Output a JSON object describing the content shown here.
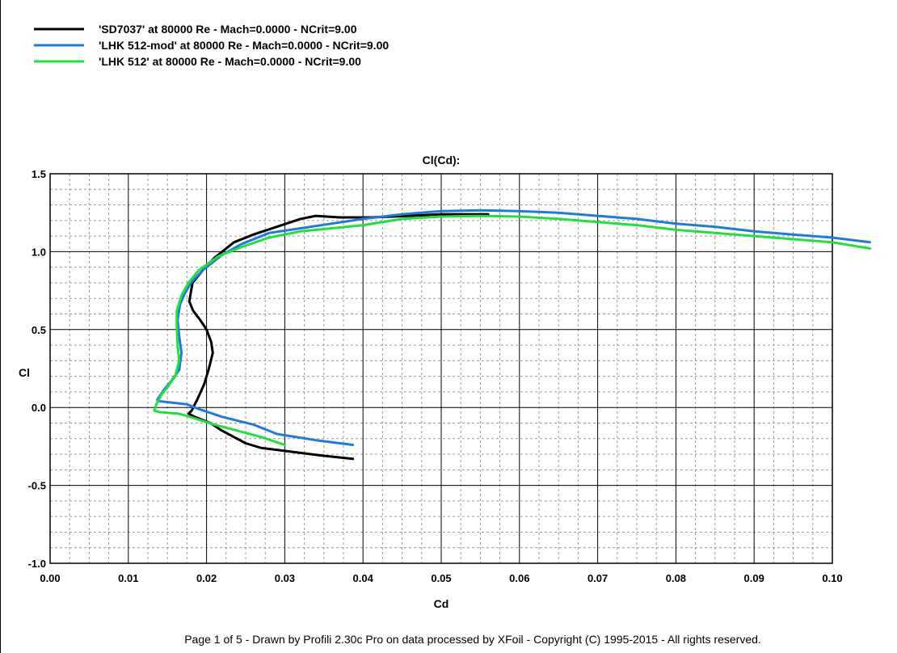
{
  "chart_data": {
    "type": "line",
    "title": "Cl(Cd):",
    "xlabel": "Cd",
    "ylabel": "Cl",
    "xlim": [
      0.0,
      0.1
    ],
    "ylim": [
      -1.0,
      1.5
    ],
    "x_ticks": [
      "0.00",
      "0.01",
      "0.02",
      "0.03",
      "0.04",
      "0.05",
      "0.06",
      "0.07",
      "0.08",
      "0.09",
      "0.10"
    ],
    "y_ticks": [
      "1.5",
      "1.0",
      "0.5",
      "0.0",
      "-0.5",
      "-1.0"
    ],
    "x_tick_values": [
      0.0,
      0.01,
      0.02,
      0.03,
      0.04,
      0.05,
      0.06,
      0.07,
      0.08,
      0.09,
      0.1
    ],
    "y_tick_values": [
      1.5,
      1.0,
      0.5,
      0.0,
      -0.5,
      -1.0
    ],
    "grid": true,
    "legend_position": "top-left",
    "series": [
      {
        "name": "'SD7037' at 80000 Re - Mach=0.0000 - NCrit=9.00",
        "color": "#000000",
        "points": [
          [
            0.0387,
            -0.33
          ],
          [
            0.035,
            -0.31
          ],
          [
            0.031,
            -0.285
          ],
          [
            0.027,
            -0.26
          ],
          [
            0.025,
            -0.23
          ],
          [
            0.022,
            -0.15
          ],
          [
            0.0205,
            -0.1
          ],
          [
            0.0185,
            -0.06
          ],
          [
            0.0177,
            -0.04
          ],
          [
            0.0181,
            -0.02
          ],
          [
            0.0183,
            0.0
          ],
          [
            0.0188,
            0.05
          ],
          [
            0.0197,
            0.15
          ],
          [
            0.0203,
            0.25
          ],
          [
            0.0208,
            0.35
          ],
          [
            0.0206,
            0.42
          ],
          [
            0.02,
            0.5
          ],
          [
            0.0192,
            0.56
          ],
          [
            0.0183,
            0.62
          ],
          [
            0.0178,
            0.68
          ],
          [
            0.018,
            0.74
          ],
          [
            0.0182,
            0.8
          ],
          [
            0.0195,
            0.88
          ],
          [
            0.021,
            0.96
          ],
          [
            0.0235,
            1.06
          ],
          [
            0.026,
            1.11
          ],
          [
            0.029,
            1.16
          ],
          [
            0.032,
            1.21
          ],
          [
            0.034,
            1.23
          ],
          [
            0.037,
            1.22
          ],
          [
            0.041,
            1.22
          ],
          [
            0.046,
            1.23
          ],
          [
            0.05,
            1.24
          ],
          [
            0.056,
            1.24
          ]
        ]
      },
      {
        "name": "'LHK  512-mod' at 80000 Re - Mach=0.0000 - NCrit=9.00",
        "color": "#1f7ae0",
        "points": [
          [
            0.0387,
            -0.24
          ],
          [
            0.034,
            -0.21
          ],
          [
            0.029,
            -0.17
          ],
          [
            0.026,
            -0.11
          ],
          [
            0.022,
            -0.06
          ],
          [
            0.019,
            -0.01
          ],
          [
            0.0175,
            0.02
          ],
          [
            0.014,
            0.04
          ],
          [
            0.0137,
            0.05
          ],
          [
            0.0145,
            0.11
          ],
          [
            0.0155,
            0.17
          ],
          [
            0.0165,
            0.24
          ],
          [
            0.0168,
            0.35
          ],
          [
            0.0165,
            0.46
          ],
          [
            0.0163,
            0.56
          ],
          [
            0.0166,
            0.66
          ],
          [
            0.0172,
            0.73
          ],
          [
            0.018,
            0.8
          ],
          [
            0.0195,
            0.88
          ],
          [
            0.022,
            0.98
          ],
          [
            0.0245,
            1.05
          ],
          [
            0.028,
            1.12
          ],
          [
            0.032,
            1.15
          ],
          [
            0.036,
            1.18
          ],
          [
            0.04,
            1.21
          ],
          [
            0.045,
            1.24
          ],
          [
            0.05,
            1.26
          ],
          [
            0.055,
            1.265
          ],
          [
            0.06,
            1.26
          ],
          [
            0.065,
            1.25
          ],
          [
            0.07,
            1.23
          ],
          [
            0.075,
            1.21
          ],
          [
            0.08,
            1.18
          ],
          [
            0.085,
            1.16
          ],
          [
            0.09,
            1.13
          ],
          [
            0.095,
            1.11
          ],
          [
            0.1,
            1.09
          ],
          [
            0.1048,
            1.06
          ]
        ]
      },
      {
        "name": "'LHK  512' at 80000 Re - Mach=0.0000 - NCrit=9.00",
        "color": "#22e03c",
        "points": [
          [
            0.03,
            -0.24
          ],
          [
            0.027,
            -0.19
          ],
          [
            0.024,
            -0.15
          ],
          [
            0.021,
            -0.11
          ],
          [
            0.0185,
            -0.07
          ],
          [
            0.0165,
            -0.04
          ],
          [
            0.014,
            -0.03
          ],
          [
            0.0133,
            -0.02
          ],
          [
            0.0136,
            0.02
          ],
          [
            0.0142,
            0.08
          ],
          [
            0.015,
            0.13
          ],
          [
            0.016,
            0.2
          ],
          [
            0.0165,
            0.3
          ],
          [
            0.0163,
            0.4
          ],
          [
            0.0162,
            0.52
          ],
          [
            0.0162,
            0.62
          ],
          [
            0.0168,
            0.72
          ],
          [
            0.0177,
            0.8
          ],
          [
            0.019,
            0.88
          ],
          [
            0.0215,
            0.97
          ],
          [
            0.0245,
            1.03
          ],
          [
            0.028,
            1.09
          ],
          [
            0.032,
            1.13
          ],
          [
            0.036,
            1.15
          ],
          [
            0.04,
            1.17
          ],
          [
            0.045,
            1.21
          ],
          [
            0.05,
            1.225
          ],
          [
            0.055,
            1.23
          ],
          [
            0.06,
            1.225
          ],
          [
            0.065,
            1.21
          ],
          [
            0.07,
            1.19
          ],
          [
            0.075,
            1.17
          ],
          [
            0.08,
            1.14
          ],
          [
            0.085,
            1.12
          ],
          [
            0.09,
            1.1
          ],
          [
            0.095,
            1.08
          ],
          [
            0.1,
            1.06
          ],
          [
            0.1048,
            1.02
          ]
        ]
      }
    ]
  },
  "footer": {
    "text": "Page 1 of 5   -   Drawn by Profili 2.30c Pro on data processed by  XFoil - Copyright (C) 1995-2015 - All rights reserved."
  }
}
